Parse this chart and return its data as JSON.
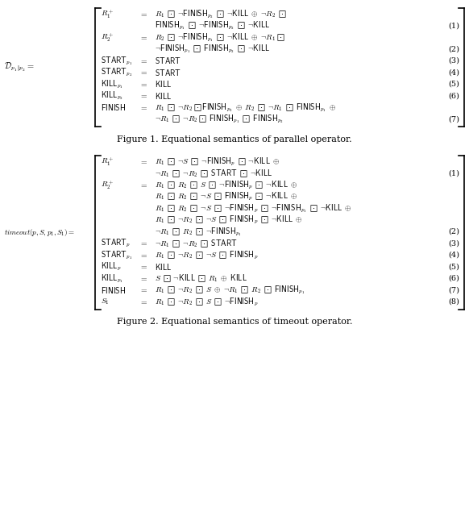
{
  "background_color": "#ffffff",
  "text_color": "#000000",
  "fig1_caption": "Figure 1. Equational semantics of parallel operator.",
  "fig2_caption": "Figure 2. Equational semantics of timeout operator.",
  "fig1_lhs_label": "$\\mathcal{D}_{p_1 \\| p_2} =$",
  "fig2_lhs_label": "$\\mathit{timeout}(p,S,p_1,S_1) =$",
  "fig1_rows": [
    {
      "lhs": "$R_1^+$",
      "eq": "$=$",
      "rhs": "$R_1 \\;\\boxdot\\; {\\neg}\\mathsf{FINISH}_{p_2} \\;\\boxdot\\; {\\neg}\\mathsf{KILL} \\;\\oplus\\; {\\neg}R_2 \\;\\boxdot$",
      "num": ""
    },
    {
      "lhs": "",
      "eq": "",
      "rhs": "$\\mathsf{FINISH}_{p_1} \\;\\boxdot\\; {\\neg}\\mathsf{FINISH}_{p_2} \\;\\boxdot\\; {\\neg}\\mathsf{KILL}$",
      "num": "(1)"
    },
    {
      "lhs": "$R_2^+$",
      "eq": "$=$",
      "rhs": "$R_2 \\;\\boxdot\\; {\\neg}\\mathsf{FINISH}_{p_1} \\;\\boxdot\\; {\\neg}\\mathsf{KILL} \\;\\oplus\\; {\\neg}R_1\\boxdot$",
      "num": ""
    },
    {
      "lhs": "",
      "eq": "",
      "rhs": "${\\neg}\\mathsf{FINISH}_{p_1} \\;\\boxdot\\; \\mathsf{FINISH}_{p_2} \\;\\boxdot\\; {\\neg}\\mathsf{KILL}$",
      "num": "(2)"
    },
    {
      "lhs": "$\\mathsf{START}_{p_1}$",
      "eq": "$=$",
      "rhs": "$\\mathsf{START}$",
      "num": "(3)"
    },
    {
      "lhs": "$\\mathsf{START}_{p_2}$",
      "eq": "$=$",
      "rhs": "$\\mathsf{START}$",
      "num": "(4)"
    },
    {
      "lhs": "$\\mathsf{KILL}_{p_1}$",
      "eq": "$=$",
      "rhs": "$\\mathsf{KILL}$",
      "num": "(5)"
    },
    {
      "lhs": "$\\mathsf{KILL}_{p_2}$",
      "eq": "$=$",
      "rhs": "$\\mathsf{KILL}$",
      "num": "(6)"
    },
    {
      "lhs": "$\\mathsf{FINISH}$",
      "eq": "$=$",
      "rhs": "$R_1 \\;\\boxdot\\; {\\neg}R_2 \\boxdot\\mathsf{FINISH}_{p_2} \\;\\oplus\\; R_2 \\;\\boxdot\\; {\\neg} R_1 \\;\\boxdot\\; \\mathsf{FINISH}_{p_1} \\;\\oplus$",
      "num": ""
    },
    {
      "lhs": "",
      "eq": "",
      "rhs": "${\\neg}R_1 \\;\\boxdot\\; {\\neg}R_2 \\boxdot\\; \\mathsf{FINISH}_{p_1} \\;\\boxdot\\; \\mathsf{FINISH}_{p_2}$",
      "num": "(7)"
    }
  ],
  "fig2_rows": [
    {
      "lhs": "$R_1^+$",
      "eq": "$=$",
      "rhs": "$R_1 \\;\\boxdot\\; {\\neg}S \\;\\boxdot\\; {\\neg}\\mathsf{FINISH}_p \\;\\boxdot\\; {\\neg}\\mathsf{KILL} \\;\\oplus$",
      "num": ""
    },
    {
      "lhs": "",
      "eq": "",
      "rhs": "${\\neg}R_1 \\;\\boxdot\\; {\\neg}R_2 \\;\\boxdot\\; \\mathsf{START} \\;\\boxdot\\; {\\neg}\\mathsf{KILL}$",
      "num": "(1)"
    },
    {
      "lhs": "$R_2^+$",
      "eq": "$=$",
      "rhs": "$R_1 \\;\\boxdot\\; R_2 \\;\\boxdot\\; S \\;\\boxdot\\; {\\neg}\\mathsf{FINISH}_p \\;\\boxdot\\; {\\neg}\\mathsf{KILL} \\;\\oplus$",
      "num": ""
    },
    {
      "lhs": "",
      "eq": "",
      "rhs": "$R_1 \\;\\boxdot\\; R_2 \\;\\boxdot\\; {\\neg}S \\;\\boxdot\\; \\mathsf{FINISH}_p \\;\\boxdot\\; {\\neg}\\mathsf{KILL} \\;\\oplus$",
      "num": ""
    },
    {
      "lhs": "",
      "eq": "",
      "rhs": "$R_1 \\;\\boxdot\\; R_2 \\;\\boxdot\\; {\\neg}S \\;\\boxdot\\; {\\neg}\\mathsf{FINISH}_p \\;\\boxdot\\; {\\neg}\\mathsf{FINISH}_{p_1} \\;\\boxdot\\; {\\neg}\\mathsf{KILL} \\;\\oplus$",
      "num": ""
    },
    {
      "lhs": "",
      "eq": "",
      "rhs": "$R_1 \\;\\boxdot\\; {\\neg}R_2 \\;\\boxdot\\; {\\neg}S \\;\\boxdot\\; \\mathsf{FINISH}_p \\;\\boxdot\\; {\\neg}\\mathsf{KILL} \\;\\oplus$",
      "num": ""
    },
    {
      "lhs": "",
      "eq": "",
      "rhs": "${\\neg}R_1 \\;\\boxdot\\; R_2 \\;\\boxdot\\; {\\neg}\\mathsf{FINISH}_{p_1}$",
      "num": "(2)"
    },
    {
      "lhs": "$\\mathsf{START}_p$",
      "eq": "$=$",
      "rhs": "${\\neg}R_1 \\;\\boxdot\\; {\\neg}R_2 \\;\\boxdot\\; \\mathsf{START}$",
      "num": "(3)"
    },
    {
      "lhs": "$\\mathsf{START}_{p_1}$",
      "eq": "$=$",
      "rhs": "$R_1 \\;\\boxdot\\; {\\neg}R_2 \\;\\boxdot\\; {\\neg}S \\;\\boxdot\\; \\mathsf{FINISH}_p$",
      "num": "(4)"
    },
    {
      "lhs": "$\\mathsf{KILL}_p$",
      "eq": "$=$",
      "rhs": "$\\mathsf{KILL}$",
      "num": "(5)"
    },
    {
      "lhs": "$\\mathsf{KILL}_{p_1}$",
      "eq": "$=$",
      "rhs": "$S \\;\\boxdot\\; {\\neg}\\mathsf{KILL} \\;\\boxdot\\; R_1 \\;\\oplus\\; \\mathsf{KILL}$",
      "num": "(6)"
    },
    {
      "lhs": "$\\mathsf{FINISH}$",
      "eq": "$=$",
      "rhs": "$R_1 \\;\\boxdot\\; {\\neg}R_2 \\;\\boxdot\\; S \\;\\oplus\\; {\\neg}R_1 \\;\\boxdot\\; R_2 \\;\\boxdot\\; \\mathsf{FINISH}_{p_1}$",
      "num": "(7)"
    },
    {
      "lhs": "$S_1$",
      "eq": "$=$",
      "rhs": "$R_1 \\;\\boxdot\\; {\\neg}R_2 \\;\\boxdot\\; S \\;\\boxdot\\; {\\neg}\\mathsf{FINISH}_p$",
      "num": "(8)"
    }
  ]
}
